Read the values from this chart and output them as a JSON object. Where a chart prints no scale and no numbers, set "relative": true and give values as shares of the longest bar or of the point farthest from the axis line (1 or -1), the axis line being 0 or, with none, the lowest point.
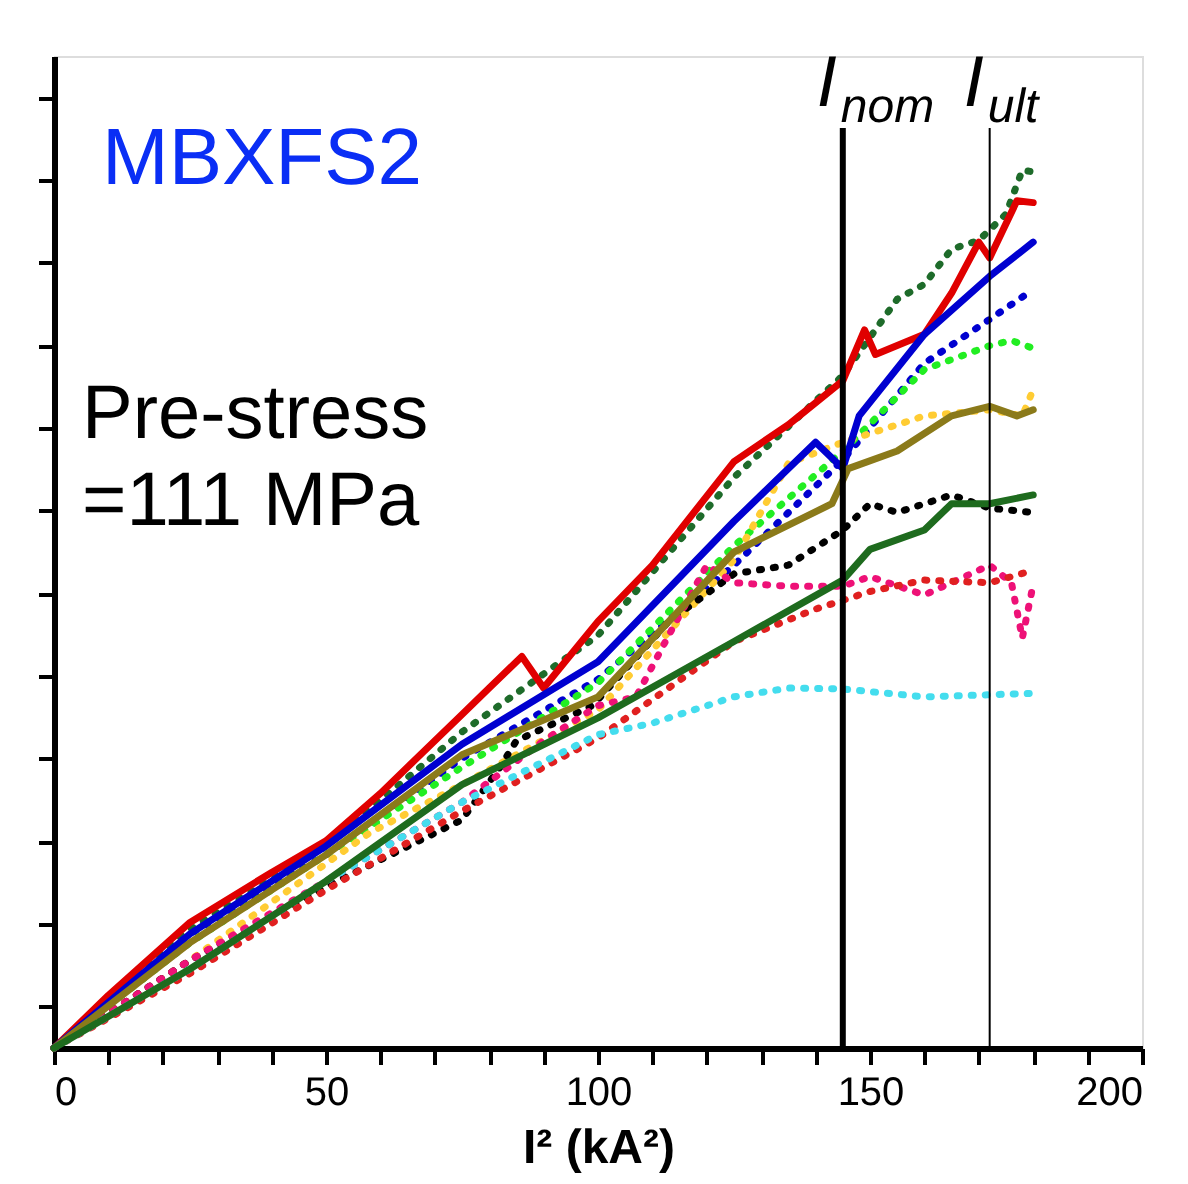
{
  "chart_data": {
    "type": "line",
    "relative": true,
    "xlabel": "I² (kA²)",
    "xlim": [
      0,
      200
    ],
    "xticks": [
      0,
      {
        "value": 10,
        "label": null
      },
      {
        "value": 20,
        "label": null
      },
      {
        "value": 30,
        "label": null
      },
      {
        "value": 40,
        "label": null
      },
      50,
      {
        "value": 60,
        "label": null
      },
      {
        "value": 70,
        "label": null
      },
      {
        "value": 80,
        "label": null
      },
      {
        "value": 90,
        "label": null
      },
      100,
      {
        "value": 110,
        "label": null
      },
      {
        "value": 120,
        "label": null
      },
      {
        "value": 130,
        "label": null
      },
      {
        "value": 140,
        "label": null
      },
      150,
      {
        "value": 160,
        "label": null
      },
      {
        "value": 170,
        "label": null
      },
      {
        "value": 180,
        "label": null
      },
      {
        "value": 190,
        "label": null
      },
      200
    ],
    "grid": false,
    "legend": false,
    "annotations": [
      "MBXFS2",
      "Pre-stress\n=111 MPa"
    ],
    "ref_lines": [
      {
        "axis": "x",
        "value": 145,
        "label": "I$_{nom}$",
        "color": "#000000"
      },
      {
        "axis": "x",
        "value": 172,
        "label": "I$_{ult}$",
        "color": "#000000"
      }
    ],
    "series": [
      {
        "color": "#1e6b2a",
        "line_style": "dotted",
        "x": [
          0,
          10,
          25,
          50,
          75,
          100,
          125,
          145,
          155,
          160,
          165,
          170,
          175,
          178,
          180
        ],
        "values": [
          0,
          0.055,
          0.135,
          0.23,
          0.36,
          0.47,
          0.65,
          0.766,
          0.853,
          0.87,
          0.91,
          0.92,
          0.95,
          1.0,
          0.998
        ]
      },
      {
        "color": "#e00000",
        "line_style": "solid",
        "x": [
          0,
          10,
          25,
          40,
          50,
          60,
          75,
          80,
          86,
          90,
          100,
          110,
          125,
          135,
          145,
          149,
          151,
          160,
          165,
          170,
          172,
          177,
          180
        ],
        "values": [
          0,
          0.06,
          0.143,
          0.2,
          0.236,
          0.29,
          0.38,
          0.41,
          0.446,
          0.41,
          0.486,
          0.55,
          0.668,
          0.71,
          0.76,
          0.818,
          0.79,
          0.813,
          0.86,
          0.918,
          0.9,
          0.965,
          0.963
        ]
      },
      {
        "color": "#0000d0",
        "line_style": "solid",
        "x": [
          0,
          25,
          50,
          75,
          100,
          125,
          140,
          145,
          148,
          160,
          172,
          180
        ],
        "values": [
          0,
          0.13,
          0.23,
          0.346,
          0.44,
          0.6,
          0.69,
          0.66,
          0.72,
          0.813,
          0.879,
          0.918
        ]
      },
      {
        "color": "#0000d0",
        "line_style": "dotted",
        "x": [
          0,
          25,
          50,
          75,
          100,
          125,
          145,
          160,
          172,
          180
        ],
        "values": [
          0,
          0.13,
          0.22,
          0.33,
          0.42,
          0.55,
          0.67,
          0.78,
          0.83,
          0.864
        ]
      },
      {
        "color": "#22ee22",
        "line_style": "dotted",
        "x": [
          0,
          25,
          50,
          75,
          100,
          125,
          145,
          160,
          172,
          176,
          180
        ],
        "values": [
          0,
          0.12,
          0.22,
          0.32,
          0.416,
          0.572,
          0.68,
          0.773,
          0.8,
          0.806,
          0.797
        ]
      },
      {
        "color": "#ffcc33",
        "line_style": "dotted",
        "x": [
          0,
          25,
          50,
          58,
          75,
          100,
          125,
          135,
          145,
          160,
          172,
          178,
          180
        ],
        "values": [
          0,
          0.1,
          0.21,
          0.245,
          0.3,
          0.385,
          0.556,
          0.666,
          0.69,
          0.72,
          0.727,
          0.72,
          0.75
        ]
      },
      {
        "color": "#8b7a1a",
        "line_style": "solid",
        "x": [
          0,
          25,
          50,
          75,
          100,
          125,
          143,
          146,
          155,
          165,
          172,
          177,
          180
        ],
        "values": [
          0,
          0.12,
          0.22,
          0.334,
          0.4,
          0.565,
          0.62,
          0.66,
          0.68,
          0.72,
          0.731,
          0.72,
          0.727
        ]
      },
      {
        "color": "#000000",
        "line_style": "dotted",
        "x": [
          0,
          25,
          52,
          75,
          82,
          85,
          99,
          113,
          125,
          135,
          145,
          150,
          155,
          165,
          172,
          180
        ],
        "values": [
          0,
          0.1,
          0.19,
          0.26,
          0.32,
          0.35,
          0.39,
          0.486,
          0.54,
          0.55,
          0.59,
          0.62,
          0.61,
          0.63,
          0.615,
          0.61
        ]
      },
      {
        "color": "#1e6b1e",
        "line_style": "solid",
        "x": [
          0,
          25,
          50,
          75,
          100,
          125,
          145,
          150,
          160,
          165,
          172,
          180
        ],
        "values": [
          0,
          0.09,
          0.19,
          0.3,
          0.376,
          0.463,
          0.533,
          0.568,
          0.59,
          0.62,
          0.62,
          0.63
        ]
      },
      {
        "color": "#ee1177",
        "line_style": "dotted",
        "x": [
          0,
          25,
          50,
          75,
          90,
          100,
          107,
          113,
          120,
          125,
          135,
          145,
          150,
          160,
          172,
          176,
          178,
          180
        ],
        "values": [
          0,
          0.1,
          0.19,
          0.28,
          0.35,
          0.39,
          0.4,
          0.47,
          0.55,
          0.53,
          0.526,
          0.526,
          0.537,
          0.516,
          0.55,
          0.53,
          0.467,
          0.528
        ]
      },
      {
        "color": "#e02020",
        "line_style": "dotted",
        "x": [
          0,
          25,
          50,
          75,
          100,
          125,
          140,
          145,
          150,
          160,
          172,
          180
        ],
        "values": [
          0,
          0.085,
          0.18,
          0.27,
          0.353,
          0.463,
          0.5,
          0.51,
          0.52,
          0.533,
          0.53,
          0.544
        ]
      },
      {
        "color": "#44ddee",
        "line_style": "dotted",
        "x": [
          0,
          25,
          50,
          75,
          100,
          110,
          125,
          135,
          145,
          160,
          180
        ],
        "values": [
          0,
          0.09,
          0.19,
          0.28,
          0.357,
          0.37,
          0.4,
          0.41,
          0.409,
          0.4,
          0.404
        ]
      }
    ]
  }
}
